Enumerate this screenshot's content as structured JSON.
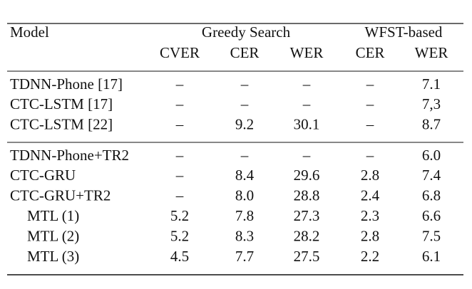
{
  "header": {
    "model": "Model",
    "groups": [
      "Greedy Search",
      "WFST-based"
    ],
    "columns": [
      "CVER",
      "CER",
      "WER",
      "CER",
      "WER"
    ]
  },
  "table": {
    "sections": [
      {
        "rows": [
          {
            "model": "TDNN-Phone [17]",
            "cells": [
              "–",
              "–",
              "–",
              "–",
              "7.1"
            ]
          },
          {
            "model": "CTC-LSTM [17]",
            "cells": [
              "–",
              "–",
              "–",
              "–",
              "7,3"
            ]
          },
          {
            "model": "CTC-LSTM [22]",
            "cells": [
              "–",
              "9.2",
              "30.1",
              "–",
              "8.7"
            ]
          }
        ]
      },
      {
        "rows": [
          {
            "model": "TDNN-Phone+TR2",
            "cells": [
              "–",
              "–",
              "–",
              "–",
              "6.0"
            ]
          },
          {
            "model": "CTC-GRU",
            "cells": [
              "–",
              "8.4",
              "29.6",
              "2.8",
              "7.4"
            ]
          },
          {
            "model": "CTC-GRU+TR2",
            "cells": [
              "–",
              "8.0",
              "28.8",
              "2.4",
              "6.8"
            ]
          },
          {
            "model": "MTL (1)",
            "cells": [
              "5.2",
              "7.8",
              "27.3",
              "2.3",
              "6.6"
            ]
          },
          {
            "model": "MTL (2)",
            "cells": [
              "5.2",
              "8.3",
              "28.2",
              "2.8",
              "7.5"
            ]
          },
          {
            "model": "MTL (3)",
            "cells": [
              "4.5",
              "7.7",
              "27.5",
              "2.2",
              "6.1"
            ]
          }
        ]
      }
    ]
  }
}
